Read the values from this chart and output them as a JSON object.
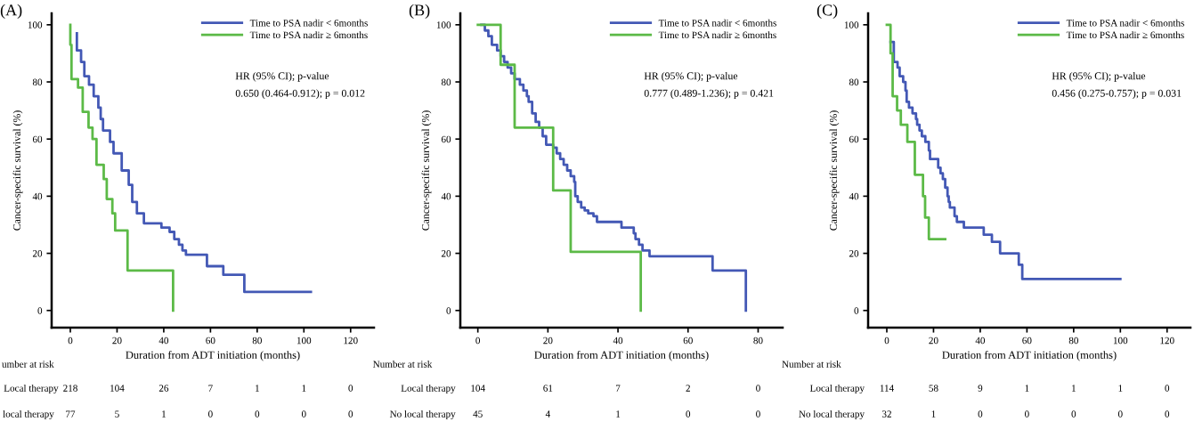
{
  "chart_data": [
    {
      "type": "step",
      "title": "(A)",
      "xlabel": "Duration from ADT initiation (months)",
      "ylabel": "Cancer-specific survival (%)",
      "xlim": [
        -8,
        130
      ],
      "ylim": [
        -6,
        104
      ],
      "xticks": [
        0,
        20,
        40,
        60,
        80,
        100,
        120
      ],
      "yticks": [
        0,
        20,
        40,
        60,
        80,
        100
      ],
      "grid": false,
      "legend": "top right",
      "marker": "none",
      "line_style": "solid",
      "series": [
        {
          "name": "Time to PSA nadir < 6months",
          "color": "#4358b5",
          "x": [
            2.8,
            2.8,
            4.6,
            6,
            8,
            10,
            12,
            13,
            14,
            17,
            18.5,
            22,
            25,
            26.5,
            28.5,
            31.5,
            39,
            42.5,
            44.5,
            46.5,
            48,
            49.5,
            58.5,
            65.5,
            74.5,
            103
          ],
          "values": [
            97,
            91,
            87,
            82,
            79,
            75,
            71,
            67,
            63,
            59,
            55,
            49,
            44,
            38,
            34,
            30.5,
            29,
            27.5,
            25,
            23,
            21,
            19.5,
            15.5,
            12.5,
            6.5,
            6.5
          ]
        },
        {
          "name": "Time to PSA nadir ≥ 6months",
          "color": "#5cba47",
          "x": [
            0,
            0,
            0.5,
            3.3,
            5.3,
            7.8,
            9.5,
            11.2,
            14.3,
            15.6,
            18,
            19.2,
            24.5,
            44,
            44
          ],
          "values": [
            100,
            93,
            81,
            78,
            69.5,
            64,
            60,
            51,
            46,
            39,
            34,
            28,
            14,
            14,
            0
          ]
        }
      ],
      "annotations": [
        "HR (95% CI); p-value",
        "0.650 (0.464-0.912); p = 0.012",
        "umber at risk",
        "Local therapy",
        "218",
        "104",
        "26",
        "7",
        "1",
        "1",
        "0",
        "local therapy",
        "77",
        "5",
        "1",
        "0",
        "0",
        "0",
        "0"
      ]
    },
    {
      "type": "step",
      "title": "(B)",
      "xlabel": "Duration from ADT initiation (months)",
      "ylabel": "Cancer-specific survival (%)",
      "xlim": [
        -5,
        87
      ],
      "ylim": [
        -6,
        104
      ],
      "xticks": [
        0,
        20,
        40,
        60,
        80
      ],
      "yticks": [
        0,
        20,
        40,
        60,
        80,
        100
      ],
      "grid": false,
      "legend": "top right",
      "marker": "none",
      "line_style": "solid",
      "series": [
        {
          "name": "Time to PSA nadir < 6months",
          "color": "#4358b5",
          "x": [
            1,
            2,
            3,
            4,
            5.5,
            6.5,
            7.5,
            8.5,
            9.5,
            10.5,
            12,
            13,
            14,
            14.5,
            15.5,
            16.5,
            17.5,
            18.5,
            19.5,
            21.5,
            22.5,
            23.5,
            24.5,
            25.5,
            26.5,
            27.5,
            27.8,
            28.5,
            29.5,
            30.5,
            31.5,
            33,
            34,
            41,
            44.5,
            45,
            46,
            47,
            49,
            67,
            76.5,
            76.5
          ],
          "values": [
            100,
            98,
            96,
            93,
            91,
            89,
            87,
            85,
            83,
            81,
            79,
            77,
            75,
            73,
            69,
            66,
            64,
            61,
            58,
            57,
            55,
            53,
            51,
            49,
            47,
            45,
            40,
            38,
            36,
            35,
            34,
            33,
            31,
            29,
            27,
            25,
            23,
            21,
            19,
            14,
            14,
            0
          ]
        },
        {
          "name": "Time to PSA nadir ≥ 6months",
          "color": "#5cba47",
          "x": [
            0,
            6.5,
            10.5,
            21.5,
            26.5,
            46.5,
            46.5
          ],
          "values": [
            100,
            86,
            64,
            42,
            20.5,
            20.5,
            0
          ]
        }
      ],
      "annotations": [
        "HR (95% CI); p-value",
        "0.777 (0.489-1.236); p = 0.421",
        "Number at risk",
        "Local therapy",
        "104",
        "61",
        "7",
        "2",
        "0",
        "No local therapy",
        "45",
        "4",
        "1",
        "0",
        "0"
      ]
    },
    {
      "type": "step",
      "title": "(C)",
      "xlabel": "Duration from ADT initiation (months)",
      "ylabel": "Cancer-specific survival (%)",
      "xlim": [
        -8,
        130
      ],
      "ylim": [
        -6,
        104
      ],
      "xticks": [
        0,
        20,
        40,
        60,
        80,
        100,
        120
      ],
      "yticks": [
        0,
        20,
        40,
        60,
        80,
        100
      ],
      "grid": false,
      "legend": "top right",
      "marker": "none",
      "line_style": "solid",
      "series": [
        {
          "name": "Time to PSA nadir < 6months",
          "color": "#4358b5",
          "x": [
            1.6,
            3,
            4.6,
            5.5,
            7,
            8,
            8.5,
            9.5,
            11,
            12.5,
            13,
            14,
            15,
            16.5,
            18,
            18.5,
            22,
            23,
            24,
            25,
            26,
            26.5,
            27,
            29,
            30,
            33,
            41.5,
            45,
            48.5,
            56.5,
            58,
            100
          ],
          "values": [
            94,
            87,
            85,
            82,
            80,
            77,
            73,
            71,
            69,
            67,
            65,
            63,
            61,
            59,
            56,
            53,
            50,
            48,
            46,
            43,
            40,
            38,
            36,
            33,
            31,
            29,
            26.5,
            24,
            20,
            16,
            11,
            11
          ]
        },
        {
          "name": "Time to PSA nadir ≥ 6months",
          "color": "#5cba47",
          "x": [
            0,
            1.6,
            2.5,
            4.4,
            6,
            8.8,
            12,
            15.5,
            16.4,
            18,
            25
          ],
          "values": [
            100,
            90,
            75,
            70,
            65,
            59,
            47.5,
            40,
            32.5,
            25,
            25
          ]
        }
      ],
      "annotations": [
        "HR (95% CI); p-value",
        "0.456 (0.275-0.757); p = 0.031",
        "Number at risk",
        "Local therapy",
        "114",
        "58",
        "9",
        "1",
        "1",
        "1",
        "0",
        "No local therapy",
        "32",
        "1",
        "0",
        "0",
        "0",
        "0",
        "0"
      ]
    }
  ]
}
